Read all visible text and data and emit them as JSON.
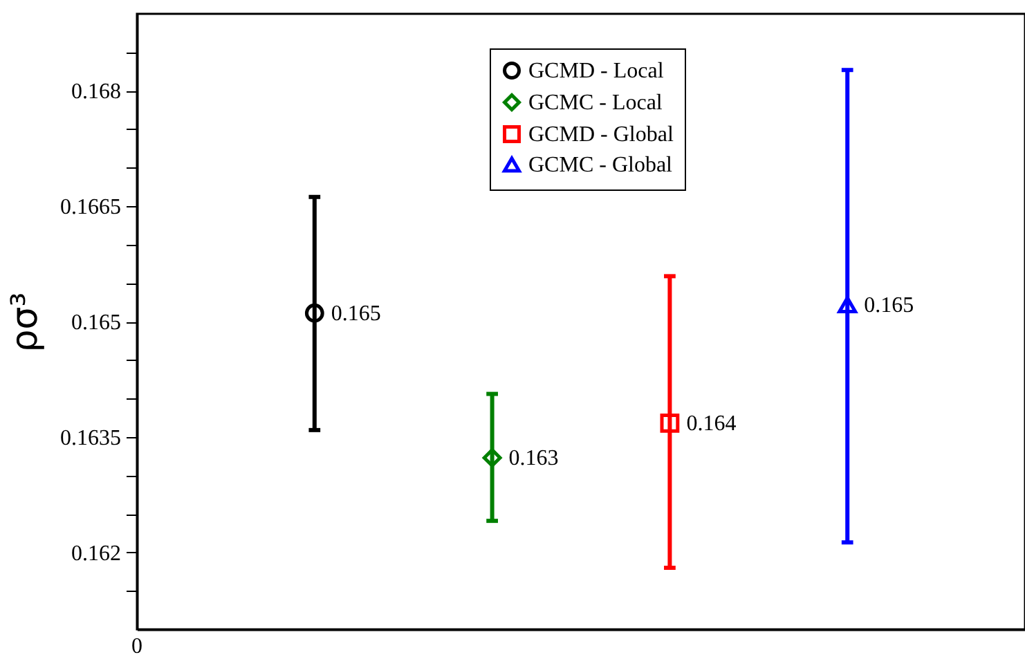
{
  "chart_data": {
    "type": "scatter",
    "ylabel": "ρσ³",
    "annotations": [
      "0"
    ],
    "categories": [
      null,
      null,
      null,
      null
    ],
    "series": [
      {
        "name": "GCMD - Local",
        "color": "#000000",
        "marker": "circle",
        "values": [
          0.16511,
          null,
          null,
          null
        ],
        "errors": [
          [
            0.16359,
            0.16662
          ],
          null,
          null,
          null
        ],
        "value_labels": [
          "0.165",
          null,
          null,
          null
        ]
      },
      {
        "name": "GCMC - Local",
        "color": "#008000",
        "marker": "diamond",
        "values": [
          null,
          0.16323,
          null,
          null
        ],
        "errors": [
          null,
          [
            0.16241,
            0.16406
          ],
          null,
          null
        ],
        "value_labels": [
          null,
          "0.163",
          null,
          null
        ]
      },
      {
        "name": "GCMD - Global",
        "color": "#ff0000",
        "marker": "square",
        "values": [
          null,
          null,
          0.16368,
          null
        ],
        "errors": [
          null,
          null,
          [
            0.1618,
            0.16559
          ],
          null
        ],
        "value_labels": [
          null,
          null,
          "0.164",
          null
        ]
      },
      {
        "name": "GCMC - Global",
        "color": "#0000ff",
        "marker": "triangle",
        "values": [
          null,
          null,
          null,
          0.16522
        ],
        "errors": [
          null,
          null,
          null,
          [
            0.16213,
            0.16827
          ]
        ],
        "value_labels": [
          null,
          null,
          null,
          "0.165"
        ]
      }
    ],
    "ylim": [
      0.161,
      0.169
    ],
    "yticks": [
      {
        "value": 0.1615,
        "label": null
      },
      0.162,
      {
        "value": 0.1625,
        "label": null
      },
      {
        "value": 0.163,
        "label": null
      },
      0.1635,
      {
        "value": 0.164,
        "label": null
      },
      {
        "value": 0.1645,
        "label": null
      },
      0.165,
      {
        "value": 0.1655,
        "label": null
      },
      {
        "value": 0.166,
        "label": null
      },
      0.1665,
      {
        "value": 0.167,
        "label": null
      },
      {
        "value": 0.1675,
        "label": null
      },
      0.168,
      {
        "value": 0.1685,
        "label": null
      }
    ],
    "legend": "top",
    "grid": false
  }
}
